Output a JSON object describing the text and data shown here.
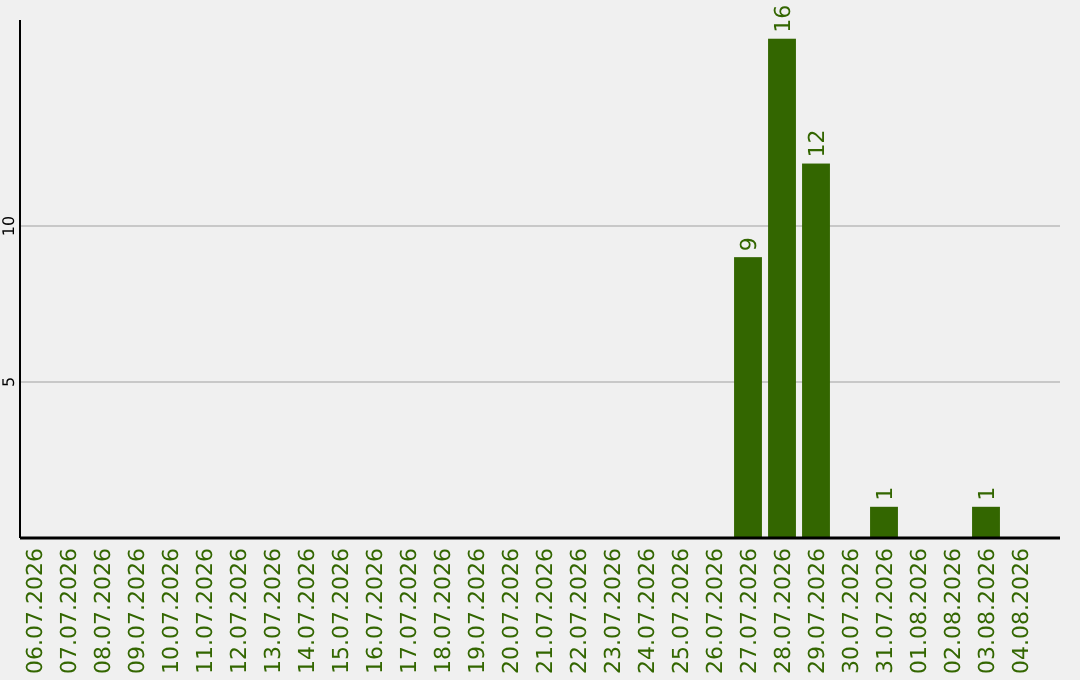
{
  "chart_data": {
    "type": "bar",
    "categories": [
      "06.07.2026",
      "07.07.2026",
      "08.07.2026",
      "09.07.2026",
      "10.07.2026",
      "11.07.2026",
      "12.07.2026",
      "13.07.2026",
      "14.07.2026",
      "15.07.2026",
      "16.07.2026",
      "17.07.2026",
      "18.07.2026",
      "19.07.2026",
      "20.07.2026",
      "21.07.2026",
      "22.07.2026",
      "23.07.2026",
      "24.07.2026",
      "25.07.2026",
      "26.07.2026",
      "27.07.2026",
      "28.07.2026",
      "29.07.2026",
      "30.07.2026",
      "31.07.2026",
      "01.08.2026",
      "02.08.2026",
      "03.08.2026",
      "04.08.2026"
    ],
    "values": [
      0,
      0,
      0,
      0,
      0,
      0,
      0,
      0,
      0,
      0,
      0,
      0,
      0,
      0,
      0,
      0,
      0,
      0,
      0,
      0,
      0,
      9,
      16,
      12,
      0,
      1,
      0,
      0,
      1,
      0
    ],
    "value_labels": [
      null,
      null,
      null,
      null,
      null,
      null,
      null,
      null,
      null,
      null,
      null,
      null,
      null,
      null,
      null,
      null,
      null,
      null,
      null,
      null,
      null,
      "9",
      "16",
      "12",
      null,
      "1",
      null,
      null,
      "1",
      null
    ],
    "color": "#336600",
    "ylim": [
      0,
      16.6
    ],
    "yticks": [
      5,
      10
    ],
    "grid": "y"
  }
}
